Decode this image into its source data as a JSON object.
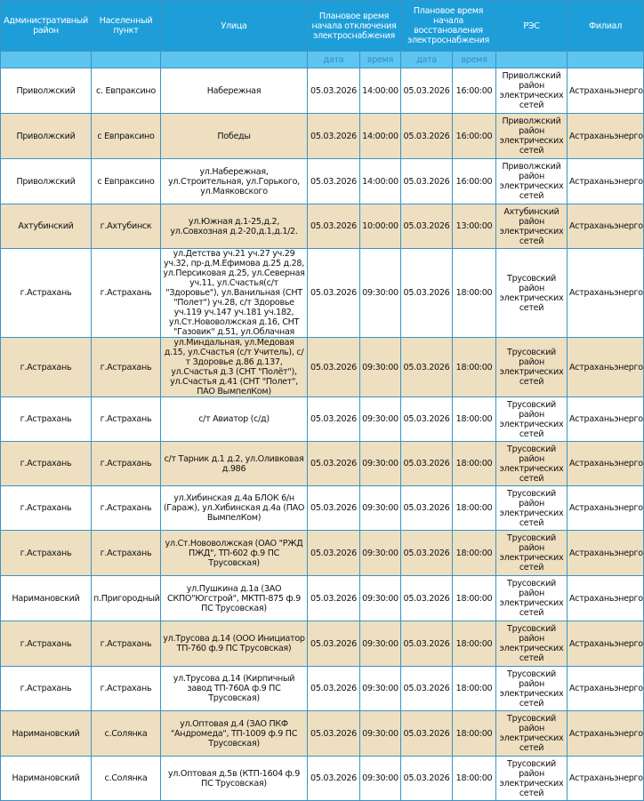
{
  "colors": {
    "header": "#1e9ed9",
    "subheader": "#5ec4f0",
    "row_alt": "#eedfc1",
    "border": "#3a94c4"
  },
  "header": {
    "district": "Административный район",
    "locality": "Населенный пункт",
    "street": "Улица",
    "off_time": "Плановое время начала отключения электроснабжения",
    "restore_time": "Плановое время начала восстановления электроснабжения",
    "res": "РЭС",
    "branch": "Филиал",
    "date": "дата",
    "time": "время"
  },
  "rows": [
    {
      "district": "Приволжский",
      "locality": "с. Евпраксино",
      "street": "Набережная",
      "off_date": "05.03.2026",
      "off_time": "14:00:00",
      "on_date": "05.03.2026",
      "on_time": "16:00:00",
      "res": "Приволжский район электрических сетей",
      "branch": "Астраханьэнерго"
    },
    {
      "district": "Приволжский",
      "locality": "с Евпраксино",
      "street": "Победы",
      "off_date": "05.03.2026",
      "off_time": "14:00:00",
      "on_date": "05.03.2026",
      "on_time": "16:00:00",
      "res": "Приволжский район электрических сетей",
      "branch": "Астраханьэнерго"
    },
    {
      "district": "Приволжский",
      "locality": "с Евпраксино",
      "street": "ул.Набережная, ул.Строительная, ул.Горького, ул.Маяковского",
      "off_date": "05.03.2026",
      "off_time": "14:00:00",
      "on_date": "05.03.2026",
      "on_time": "16:00:00",
      "res": "Приволжский район электрических сетей",
      "branch": "Астраханьэнерго"
    },
    {
      "district": "Ахтубинский",
      "locality": "г.Ахтубинск",
      "street": "ул.Южная д.1-25,д.2, ул.Совхозная д.2-20,д.1,д.1/2.",
      "off_date": "05.03.2026",
      "off_time": "10:00:00",
      "on_date": "05.03.2026",
      "on_time": "13:00:00",
      "res": "Ахтубинский район электрических сетей",
      "branch": "Астраханьэнерго"
    },
    {
      "district": "г.Астрахань",
      "locality": "г.Астрахань",
      "street": "ул.Детства уч.21 уч.27 уч.29 уч.32, пр-д.М.Ефимова д.25 д.28, ул.Персиковая д.25, ул.Северная уч.11, ул.Счастья(с/т \"Здоровье\"), ул.Ванильная (СНТ \"Полет\") уч.28, с/т Здоровье уч.119 уч.147 уч.181 уч.182, ул.Ст.Нововолжская д.16, СНТ \"Газовик\" д.51, ул.Облачная",
      "off_date": "05.03.2026",
      "off_time": "09:30:00",
      "on_date": "05.03.2026",
      "on_time": "18:00:00",
      "res": "Трусовский район электрических сетей",
      "branch": "Астраханьэнерго"
    },
    {
      "district": "г.Астрахань",
      "locality": "г.Астрахань",
      "street": "ул.Миндальная, ул.Медовая д.15, ул.Счастья (с/т Учитель), с/т Здоровье д.86 д.137, ул.Счастья д.3 (СНТ \"Полёт\"), ул.Счастья д.41 (СНТ \"Полет\", ПАО ВымпелКом)",
      "off_date": "05.03.2026",
      "off_time": "09:30:00",
      "on_date": "05.03.2026",
      "on_time": "18:00:00",
      "res": "Трусовский район электрических сетей",
      "branch": "Астраханьэнерго"
    },
    {
      "district": "г.Астрахань",
      "locality": "г.Астрахань",
      "street": "с/т Авиатор (с/д)",
      "off_date": "05.03.2026",
      "off_time": "09:30:00",
      "on_date": "05.03.2026",
      "on_time": "18:00:00",
      "res": "Трусовский район электрических сетей",
      "branch": "Астраханьэнерго"
    },
    {
      "district": "г.Астрахань",
      "locality": "г.Астрахань",
      "street": "с/т Тарник д.1 д.2, ул.Оливковая д.986",
      "off_date": "05.03.2026",
      "off_time": "09:30:00",
      "on_date": "05.03.2026",
      "on_time": "18:00:00",
      "res": "Трусовский район электрических сетей",
      "branch": "Астраханьэнерго"
    },
    {
      "district": "г.Астрахань",
      "locality": "г.Астрахань",
      "street": "ул.Хибинская д.4а БЛОК 6/н (Гараж), ул.Хибинская д.4а (ПАО ВымпелКом)",
      "off_date": "05.03.2026",
      "off_time": "09:30:00",
      "on_date": "05.03.2026",
      "on_time": "18:00:00",
      "res": "Трусовский район электрических сетей",
      "branch": "Астраханьэнерго"
    },
    {
      "district": "г.Астрахань",
      "locality": "г.Астрахань",
      "street": "ул.Ст.Нововолжская (ОАО \"РЖД ПЖД\", ТП-602 ф.9 ПС Трусовская)",
      "off_date": "05.03.2026",
      "off_time": "09:30:00",
      "on_date": "05.03.2026",
      "on_time": "18:00:00",
      "res": "Трусовский район электрических сетей",
      "branch": "Астраханьэнерго"
    },
    {
      "district": "Наримановский",
      "locality": "п.Пригородный",
      "street": "ул.Пушкина д.1а (ЗАО СКПО\"Югстрой\", МКТП-875 ф.9 ПС Трусовская)",
      "off_date": "05.03.2026",
      "off_time": "09:30:00",
      "on_date": "05.03.2026",
      "on_time": "18:00:00",
      "res": "Трусовский район электрических сетей",
      "branch": "Астраханьэнерго"
    },
    {
      "district": "г.Астрахань",
      "locality": "г.Астрахань",
      "street": "ул.Трусова д.14 (ООО Инициатор ТП-760 ф.9 ПС Трусовская)",
      "off_date": "05.03.2026",
      "off_time": "09:30:00",
      "on_date": "05.03.2026",
      "on_time": "18:00:00",
      "res": "Трусовский район электрических сетей",
      "branch": "Астраханьэнерго"
    },
    {
      "district": "г.Астрахань",
      "locality": "г.Астрахань",
      "street": "ул.Трусова д.14 (Кирпичный завод ТП-760А ф.9 ПС Трусовская)",
      "off_date": "05.03.2026",
      "off_time": "09:30:00",
      "on_date": "05.03.2026",
      "on_time": "18:00:00",
      "res": "Трусовский район электрических сетей",
      "branch": "Астраханьэнерго"
    },
    {
      "district": "Наримановский",
      "locality": "с.Солянка",
      "street": "ул.Оптовая д.4 (ЗАО ПКФ \"Андромеда\", ТП-1009 ф.9 ПС Трусовская)",
      "off_date": "05.03.2026",
      "off_time": "09:30:00",
      "on_date": "05.03.2026",
      "on_time": "18:00:00",
      "res": "Трусовский район электрических сетей",
      "branch": "Астраханьэнерго"
    },
    {
      "district": "Наримановский",
      "locality": "с.Солянка",
      "street": "ул.Оптовая д.5в (КТП-1604 ф.9 ПС Трусовская)",
      "off_date": "05.03.2026",
      "off_time": "09:30:00",
      "on_date": "05.03.2026",
      "on_time": "18:00:00",
      "res": "Трусовский район электрических сетей",
      "branch": "Астраханьэнерго"
    }
  ]
}
